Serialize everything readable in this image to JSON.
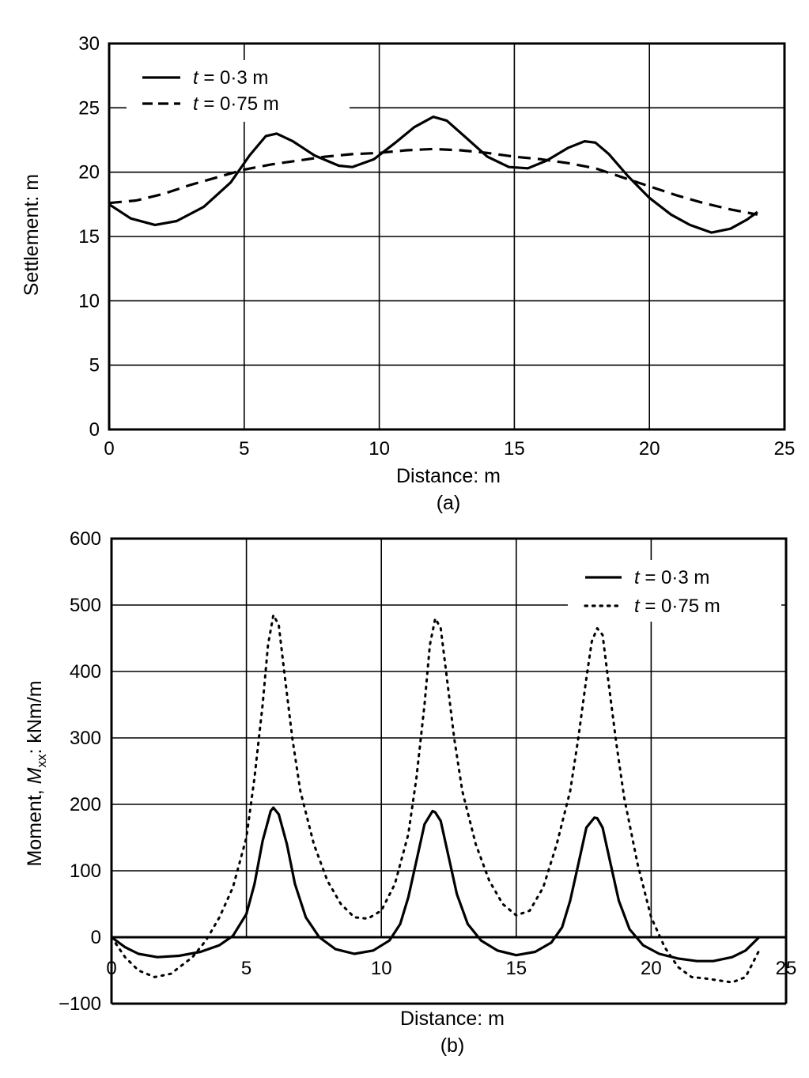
{
  "chart_data": [
    {
      "type": "line",
      "panel_label": "(a)",
      "xlabel": "Distance: m",
      "ylabel": "Settlement: m",
      "xlim": [
        0,
        25
      ],
      "ylim": [
        0,
        30
      ],
      "xticks": [
        0,
        5,
        10,
        15,
        20,
        25
      ],
      "yticks": [
        0,
        5,
        10,
        15,
        20,
        25,
        30
      ],
      "grid": true,
      "legend_position": "top-left",
      "series": [
        {
          "name": "t = 0·3 m",
          "legend_var": "t",
          "legend_rest": " = 0·3 m",
          "style": "solid",
          "color": "#000000",
          "x": [
            0,
            0.8,
            1.7,
            2.5,
            3.5,
            4.5,
            5.2,
            5.8,
            6.2,
            6.8,
            7.6,
            8.5,
            9.0,
            9.8,
            10.6,
            11.3,
            12.0,
            12.5,
            13.2,
            14.0,
            14.8,
            15.5,
            16.2,
            17.0,
            17.6,
            18.0,
            18.5,
            19.2,
            20.0,
            20.8,
            21.5,
            22.3,
            23.0,
            23.6,
            24.0
          ],
          "y": [
            17.5,
            16.4,
            15.9,
            16.2,
            17.3,
            19.2,
            21.3,
            22.8,
            23.0,
            22.4,
            21.3,
            20.5,
            20.4,
            21.0,
            22.3,
            23.5,
            24.3,
            24.0,
            22.7,
            21.2,
            20.4,
            20.3,
            20.9,
            21.9,
            22.4,
            22.3,
            21.4,
            19.7,
            18.0,
            16.7,
            15.9,
            15.3,
            15.6,
            16.3,
            16.9
          ]
        },
        {
          "name": "t = 0·75 m",
          "legend_var": "t",
          "legend_rest": " = 0·75 m",
          "style": "dashed",
          "color": "#000000",
          "x": [
            0,
            1.0,
            2.0,
            3.0,
            4.0,
            5.0,
            6.0,
            7.0,
            8.0,
            9.0,
            10.0,
            11.0,
            12.0,
            13.0,
            14.0,
            15.0,
            16.0,
            17.0,
            18.0,
            19.0,
            20.0,
            21.0,
            22.0,
            23.0,
            24.0
          ],
          "y": [
            17.6,
            17.8,
            18.3,
            19.0,
            19.6,
            20.2,
            20.6,
            20.9,
            21.2,
            21.4,
            21.5,
            21.7,
            21.8,
            21.7,
            21.5,
            21.2,
            21.0,
            20.7,
            20.3,
            19.6,
            18.9,
            18.2,
            17.6,
            17.1,
            16.7
          ]
        }
      ]
    },
    {
      "type": "line",
      "panel_label": "(b)",
      "xlabel": "Distance: m",
      "ylabel_prefix": "Moment, ",
      "ylabel_var": "M",
      "ylabel_sub": "xx",
      "ylabel_suffix": ": kNm/m",
      "xlim": [
        0,
        25
      ],
      "ylim": [
        -100,
        600
      ],
      "xticks": [
        0,
        5,
        10,
        15,
        20,
        25
      ],
      "yticks": [
        -100,
        0,
        100,
        200,
        300,
        400,
        500,
        600
      ],
      "ytick_labels": [
        "−100",
        "0",
        "100",
        "200",
        "300",
        "400",
        "500",
        "600"
      ],
      "grid": true,
      "legend_position": "top-right",
      "series": [
        {
          "name": "t = 0·3 m",
          "legend_var": "t",
          "legend_rest": " = 0·3 m",
          "style": "solid",
          "color": "#000000",
          "x": [
            0,
            0.5,
            1.0,
            1.7,
            2.5,
            3.3,
            4.0,
            4.5,
            5.0,
            5.3,
            5.6,
            5.9,
            6.0,
            6.2,
            6.5,
            6.8,
            7.2,
            7.7,
            8.3,
            9.0,
            9.7,
            10.3,
            10.7,
            11.0,
            11.3,
            11.6,
            11.9,
            12.0,
            12.2,
            12.5,
            12.8,
            13.2,
            13.7,
            14.3,
            15.0,
            15.7,
            16.3,
            16.7,
            17.0,
            17.3,
            17.6,
            17.9,
            18.0,
            18.2,
            18.5,
            18.8,
            19.2,
            19.7,
            20.3,
            21.0,
            21.7,
            22.3,
            23.0,
            23.5,
            24.0
          ],
          "y": [
            0,
            -15,
            -25,
            -30,
            -28,
            -22,
            -12,
            2,
            35,
            80,
            145,
            190,
            195,
            185,
            140,
            80,
            30,
            0,
            -18,
            -25,
            -20,
            -5,
            20,
            60,
            115,
            170,
            190,
            188,
            175,
            120,
            65,
            20,
            -5,
            -20,
            -27,
            -22,
            -8,
            15,
            55,
            110,
            165,
            180,
            179,
            165,
            110,
            55,
            12,
            -12,
            -25,
            -32,
            -36,
            -36,
            -30,
            -20,
            0
          ]
        },
        {
          "name": "t = 0·75 m",
          "legend_var": "t",
          "legend_rest": " = 0·75 m",
          "style": "dotted",
          "color": "#000000",
          "x": [
            0,
            0.5,
            1.0,
            1.6,
            2.2,
            3.0,
            3.5,
            4.0,
            4.5,
            5.0,
            5.3,
            5.6,
            5.8,
            6.0,
            6.2,
            6.4,
            6.7,
            7.0,
            7.5,
            8.0,
            8.5,
            9.0,
            9.5,
            10.0,
            10.5,
            11.0,
            11.3,
            11.6,
            11.8,
            12.0,
            12.2,
            12.4,
            12.7,
            13.0,
            13.5,
            14.0,
            14.5,
            15.0,
            15.5,
            16.0,
            16.5,
            17.0,
            17.3,
            17.6,
            17.8,
            18.0,
            18.2,
            18.4,
            18.7,
            19.0,
            19.5,
            20.0,
            20.5,
            21.0,
            21.5,
            22.0,
            22.5,
            23.0,
            23.5,
            24.0
          ],
          "y": [
            0,
            -30,
            -50,
            -60,
            -55,
            -30,
            -5,
            30,
            75,
            150,
            240,
            350,
            440,
            485,
            470,
            400,
            300,
            220,
            140,
            85,
            50,
            30,
            28,
            40,
            80,
            155,
            240,
            350,
            440,
            480,
            465,
            400,
            300,
            220,
            140,
            85,
            50,
            33,
            40,
            75,
            140,
            220,
            300,
            390,
            445,
            465,
            455,
            390,
            295,
            210,
            110,
            30,
            -15,
            -45,
            -60,
            -62,
            -65,
            -68,
            -60,
            -20
          ]
        }
      ]
    }
  ]
}
